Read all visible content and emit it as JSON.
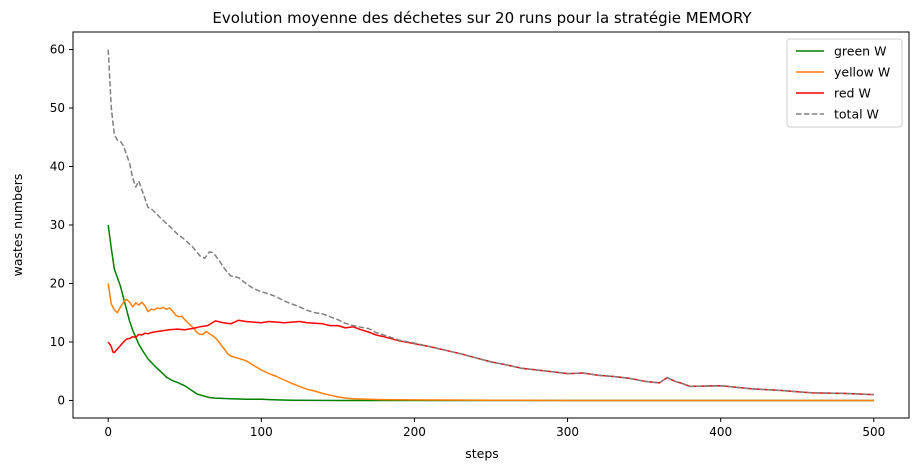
{
  "chart_data": {
    "type": "line",
    "title": "Evolution moyenne des déchetes sur 20 runs pour la stratégie MEMORY",
    "xlabel": "steps",
    "ylabel": "wastes numbers",
    "xlim": [
      -23,
      523
    ],
    "ylim": [
      -3,
      63
    ],
    "xticks": [
      0,
      100,
      200,
      300,
      400,
      500
    ],
    "yticks": [
      0,
      10,
      20,
      30,
      40,
      50,
      60
    ],
    "grid": false,
    "legend_position": "top-right",
    "series": [
      {
        "name": "green W",
        "color": "#008000",
        "style": "solid",
        "x": [
          0,
          2,
          4,
          6,
          8,
          10,
          12,
          14,
          16,
          18,
          20,
          23,
          26,
          30,
          34,
          38,
          42,
          46,
          50,
          54,
          58,
          62,
          66,
          70,
          80,
          90,
          100,
          110,
          120,
          150,
          200,
          300,
          400,
          500
        ],
        "y": [
          30,
          26,
          22.5,
          21,
          19.5,
          17.5,
          15.5,
          13.5,
          12,
          10.8,
          9.6,
          8.3,
          7.1,
          6,
          5,
          4,
          3.4,
          3,
          2.5,
          1.8,
          1.1,
          0.8,
          0.5,
          0.4,
          0.3,
          0.2,
          0.2,
          0.1,
          0.05,
          0,
          0,
          0,
          0,
          0
        ]
      },
      {
        "name": "yellow W",
        "color": "#ff7f0e",
        "style": "solid",
        "x": [
          0,
          2,
          4,
          6,
          8,
          10,
          12,
          14,
          16,
          18,
          20,
          22,
          24,
          26,
          28,
          30,
          32,
          34,
          36,
          38,
          40,
          42,
          44,
          46,
          48,
          50,
          52,
          54,
          56,
          58,
          60,
          62,
          64,
          66,
          68,
          70,
          72,
          74,
          76,
          78,
          80,
          85,
          90,
          95,
          100,
          105,
          110,
          115,
          120,
          125,
          130,
          135,
          140,
          145,
          150,
          155,
          160,
          170,
          180,
          200,
          250,
          300,
          400,
          500
        ],
        "y": [
          20,
          16.5,
          15.5,
          15,
          16,
          16.8,
          17.3,
          16.8,
          16,
          16.7,
          16.3,
          16.8,
          16.2,
          15.2,
          15.6,
          15.5,
          15.8,
          15.7,
          15.9,
          15.6,
          15.8,
          15.3,
          14.6,
          14.3,
          14.4,
          13.8,
          13.3,
          12.8,
          12.3,
          11.6,
          11.3,
          11.3,
          11.8,
          11.4,
          11.1,
          10.7,
          10.1,
          9.4,
          8.7,
          8,
          7.6,
          7.2,
          6.8,
          6,
          5.2,
          4.6,
          4.1,
          3.5,
          2.9,
          2.4,
          1.9,
          1.6,
          1.2,
          0.9,
          0.6,
          0.4,
          0.3,
          0.2,
          0.15,
          0.1,
          0.05,
          0,
          0,
          0
        ]
      },
      {
        "name": "red W",
        "color": "#ff0000",
        "style": "solid",
        "x": [
          0,
          2,
          3,
          4,
          6,
          8,
          10,
          12,
          14,
          16,
          18,
          20,
          22,
          24,
          26,
          28,
          30,
          35,
          40,
          45,
          50,
          55,
          60,
          65,
          70,
          75,
          80,
          85,
          90,
          95,
          100,
          105,
          110,
          115,
          120,
          125,
          130,
          135,
          140,
          145,
          150,
          155,
          160,
          165,
          170,
          175,
          180,
          190,
          200,
          210,
          220,
          230,
          240,
          250,
          260,
          270,
          280,
          290,
          300,
          310,
          320,
          330,
          340,
          350,
          360,
          365,
          370,
          375,
          380,
          400,
          420,
          440,
          450,
          460,
          480,
          500
        ],
        "y": [
          10,
          9.2,
          8.3,
          8.2,
          8.8,
          9.4,
          10,
          10.5,
          10.6,
          10.9,
          10.8,
          11.3,
          11.2,
          11.5,
          11.4,
          11.6,
          11.7,
          11.9,
          12.1,
          12.2,
          12.1,
          12.3,
          12.6,
          12.8,
          13.6,
          13.3,
          13.1,
          13.7,
          13.5,
          13.4,
          13.3,
          13.5,
          13.4,
          13.3,
          13.4,
          13.5,
          13.3,
          13.2,
          13.1,
          12.8,
          12.8,
          12.4,
          12.6,
          12.1,
          11.7,
          11.2,
          10.9,
          10.2,
          9.7,
          9.2,
          8.6,
          8,
          7.3,
          6.6,
          6.1,
          5.5,
          5.2,
          4.9,
          4.6,
          4.7,
          4.3,
          4.1,
          3.8,
          3.3,
          3,
          3.9,
          3.3,
          2.9,
          2.4,
          2.5,
          2,
          1.7,
          1.5,
          1.3,
          1.2,
          1
        ]
      },
      {
        "name": "total W",
        "color": "#808080",
        "style": "dashed",
        "x": [
          0,
          2,
          4,
          6,
          8,
          10,
          12,
          14,
          16,
          18,
          20,
          22,
          24,
          26,
          28,
          30,
          35,
          40,
          45,
          50,
          55,
          60,
          63,
          66,
          68,
          70,
          73,
          76,
          80,
          85,
          90,
          95,
          100,
          105,
          110,
          115,
          120,
          125,
          130,
          135,
          140,
          145,
          150,
          155,
          160,
          165,
          170,
          175,
          180,
          190,
          200,
          210,
          220,
          230,
          240,
          250,
          260,
          270,
          280,
          290,
          300,
          310,
          320,
          330,
          340,
          350,
          360,
          365,
          370,
          375,
          380,
          400,
          420,
          440,
          450,
          460,
          480,
          500
        ],
        "y": [
          60,
          50,
          45.5,
          44.5,
          44.3,
          43.5,
          42,
          40.5,
          38,
          36.5,
          37.5,
          36,
          34.5,
          33,
          32.8,
          32.3,
          31,
          29.8,
          28.5,
          27.5,
          26.3,
          24.7,
          24.3,
          25.4,
          25.3,
          24.8,
          23.7,
          22.5,
          21.3,
          21,
          20,
          19.1,
          18.6,
          18.2,
          17.7,
          17,
          16.5,
          16,
          15.4,
          15,
          14.8,
          14.3,
          13.8,
          13.2,
          12.8,
          12.5,
          12.3,
          11.6,
          11.2,
          10.3,
          9.8,
          9.2,
          8.6,
          8,
          7.3,
          6.6,
          6.1,
          5.5,
          5.2,
          4.9,
          4.6,
          4.7,
          4.3,
          4.1,
          3.8,
          3.3,
          3,
          3.9,
          3.3,
          2.9,
          2.4,
          2.5,
          2,
          1.7,
          1.5,
          1.3,
          1.2,
          1
        ]
      }
    ]
  }
}
